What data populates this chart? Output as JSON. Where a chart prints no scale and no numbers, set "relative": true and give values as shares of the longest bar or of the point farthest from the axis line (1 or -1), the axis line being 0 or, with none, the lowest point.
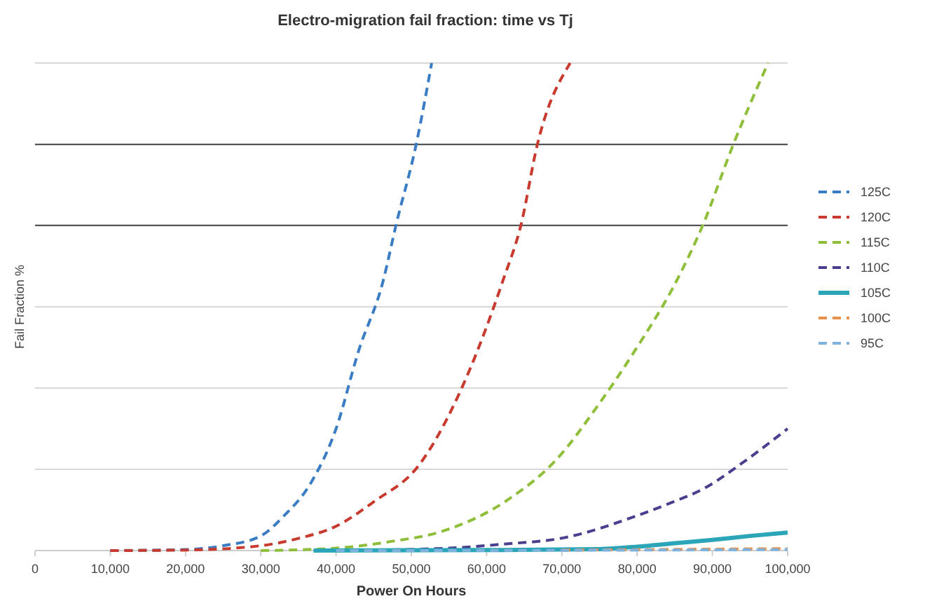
{
  "chart_data": {
    "type": "line",
    "title": "Electro-migration fail fraction: time vs Tj",
    "xlabel": "Power On Hours",
    "ylabel": "Fail Fraction %",
    "relative": true,
    "grid": true,
    "legend": "right",
    "marker": "none",
    "xlim": [
      0,
      100000
    ],
    "xticks": [
      0,
      {
        "value": 10000,
        "label": "10,000"
      },
      {
        "value": 20000,
        "label": "20,000"
      },
      {
        "value": 30000,
        "label": "30,000"
      },
      {
        "value": 40000,
        "label": "40,000"
      },
      {
        "value": 50000,
        "label": "50,000"
      },
      {
        "value": 60000,
        "label": "60,000"
      },
      {
        "value": 70000,
        "label": "70,000"
      },
      {
        "value": 80000,
        "label": "80,000"
      },
      {
        "value": 90000,
        "label": "90,000"
      },
      {
        "value": 100000,
        "label": "100,000"
      }
    ],
    "ref_lines": [
      {
        "axis": "y",
        "value": 0.667,
        "color": "#444444"
      },
      {
        "axis": "y",
        "value": 0.833,
        "color": "#444444"
      }
    ],
    "series": [
      {
        "name": "125C",
        "color": "#3b7dc4",
        "line_style": "dashed",
        "x": [
          10000,
          20000,
          25000,
          30000,
          33000,
          36700,
          40000,
          43000,
          46200,
          48000,
          50600,
          52700
        ],
        "values": [
          0,
          0.002,
          0.01,
          0.03,
          0.07,
          0.14,
          0.25,
          0.41,
          0.55,
          0.67,
          0.83,
          1
        ]
      },
      {
        "name": "120C",
        "color": "#c8392e",
        "line_style": "dashed",
        "x": [
          10000,
          20000,
          30000,
          35000,
          40000,
          45000,
          51000,
          56600,
          62200,
          64600,
          66700,
          71100
        ],
        "values": [
          0,
          0.001,
          0.01,
          0.025,
          0.05,
          0.1,
          0.175,
          0.33,
          0.555,
          0.67,
          0.83,
          1
        ]
      },
      {
        "name": "115C",
        "color": "#8fbf3a",
        "line_style": "dashed",
        "x": [
          30000,
          40000,
          47000,
          54200,
          63000,
          69300,
          74900,
          79700,
          85300,
          88800,
          92700,
          97400
        ],
        "values": [
          0,
          0.005,
          0.018,
          0.04,
          0.106,
          0.187,
          0.3,
          0.41,
          0.555,
          0.67,
          0.83,
          1
        ]
      },
      {
        "name": "110C",
        "color": "#4a3f8f",
        "line_style": "dashed",
        "x": [
          40000,
          55000,
          62000,
          70200,
          79700,
          84000,
          89200,
          94000,
          100000
        ],
        "values": [
          0,
          0.005,
          0.013,
          0.026,
          0.07,
          0.095,
          0.13,
          0.18,
          0.25
        ]
      },
      {
        "name": "105C",
        "color": "#2aa6b8",
        "line_style": "solid",
        "x": [
          37000,
          60000,
          75000,
          80000,
          85000,
          90000,
          95000,
          100000
        ],
        "values": [
          0,
          0.001,
          0.003,
          0.008,
          0.015,
          0.022,
          0.03,
          0.037
        ]
      },
      {
        "name": "100C",
        "color": "#e8914a",
        "line_style": "dashed",
        "x": [
          70000,
          100000
        ],
        "values": [
          0.001,
          0.004
        ]
      },
      {
        "name": "95C",
        "color": "#7fb2dd",
        "line_style": "dashed",
        "x": [
          40000,
          70000,
          100000
        ],
        "values": [
          0,
          0.0005,
          0.002
        ]
      }
    ]
  }
}
